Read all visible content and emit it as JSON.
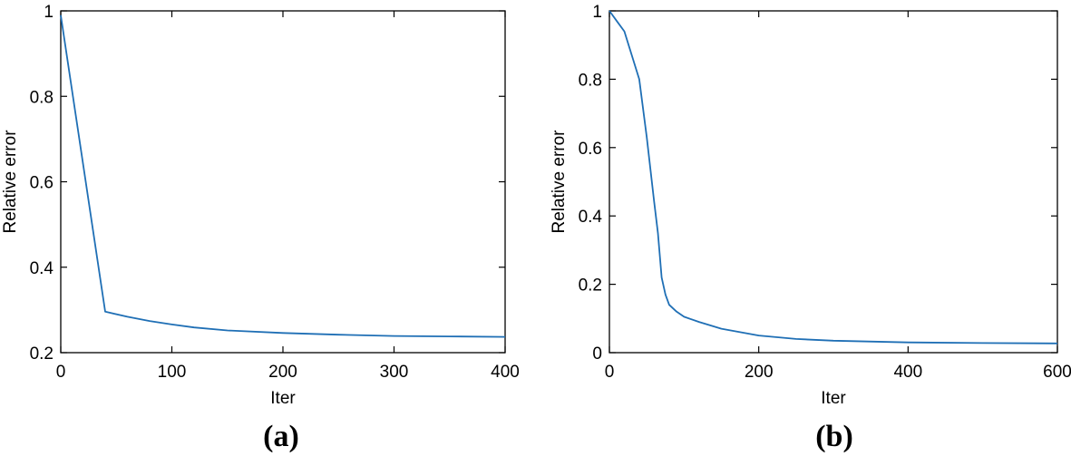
{
  "chart_data": [
    {
      "type": "line",
      "panel_label": "(a)",
      "xlabel": "Iter",
      "ylabel": "Relative error",
      "xlim": [
        0,
        400
      ],
      "ylim": [
        0.2,
        1
      ],
      "xticks": [
        0,
        100,
        200,
        300,
        400
      ],
      "xtick_labels": [
        "0",
        "100",
        "200",
        "300",
        "400"
      ],
      "yticks": [
        0.2,
        0.4,
        0.6,
        0.8,
        1
      ],
      "ytick_labels": [
        "0.2",
        "0.4",
        "0.6",
        "0.8",
        "1"
      ],
      "grid": false,
      "color": "#1f6fb5",
      "series": [
        {
          "x": [
            0,
            40,
            60,
            80,
            100,
            120,
            150,
            200,
            250,
            300,
            350,
            400
          ],
          "y": [
            0.99,
            0.296,
            0.284,
            0.274,
            0.266,
            0.259,
            0.252,
            0.246,
            0.242,
            0.239,
            0.238,
            0.237
          ]
        }
      ]
    },
    {
      "type": "line",
      "panel_label": "(b)",
      "xlabel": "Iter",
      "ylabel": "Relative error",
      "xlim": [
        0,
        600
      ],
      "ylim": [
        0,
        1
      ],
      "xticks": [
        0,
        200,
        400,
        600
      ],
      "xtick_labels": [
        "0",
        "200",
        "400",
        "600"
      ],
      "yticks": [
        0,
        0.2,
        0.4,
        0.6,
        0.8,
        1
      ],
      "ytick_labels": [
        "0",
        "0.2",
        "0.4",
        "0.6",
        "0.8",
        "1"
      ],
      "grid": false,
      "color": "#1f6fb5",
      "series": [
        {
          "x": [
            0,
            10,
            20,
            30,
            40,
            50,
            60,
            65,
            70,
            75,
            80,
            90,
            100,
            120,
            150,
            200,
            250,
            300,
            400,
            500,
            600
          ],
          "y": [
            1,
            0.97,
            0.94,
            0.87,
            0.8,
            0.63,
            0.44,
            0.35,
            0.22,
            0.17,
            0.14,
            0.12,
            0.105,
            0.09,
            0.07,
            0.05,
            0.04,
            0.035,
            0.03,
            0.028,
            0.027
          ]
        }
      ]
    }
  ]
}
